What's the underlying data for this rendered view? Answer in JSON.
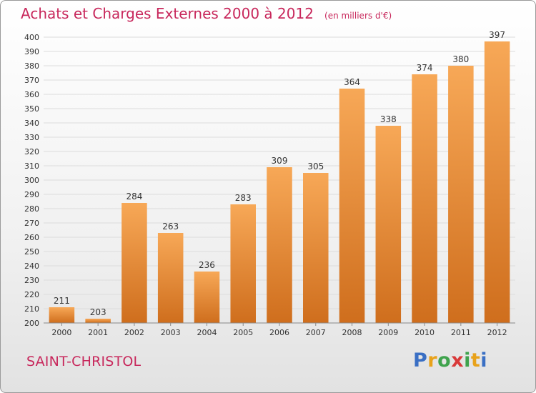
{
  "title": "Achats et Charges Externes 2000 à 2012",
  "subtitle": "(en milliers d'€)",
  "commune": "SAINT-CHRISTOL",
  "logo": {
    "letters": [
      "P",
      "r",
      "o",
      "x",
      "i",
      "t",
      "i"
    ],
    "colors": [
      "#3a6fc4",
      "#e8a21b",
      "#3fa34d",
      "#d93a3a",
      "#3fa34d",
      "#e8a21b",
      "#3a6fc4"
    ]
  },
  "colors": {
    "accent": "#c8285c",
    "bar_top": "#f7a857",
    "bar_bottom": "#cf6e1d",
    "grid": "#dcdcdc"
  },
  "chart_data": {
    "type": "bar",
    "title": "Achats et Charges Externes 2000 à 2012",
    "subtitle": "(en milliers d'€)",
    "categories": [
      "2000",
      "2001",
      "2002",
      "2003",
      "2004",
      "2005",
      "2006",
      "2007",
      "2008",
      "2009",
      "2010",
      "2011",
      "2012"
    ],
    "values": [
      211,
      203,
      284,
      263,
      236,
      283,
      309,
      305,
      364,
      338,
      374,
      380,
      397
    ],
    "ylim": [
      200,
      400
    ],
    "ytick_step": 10,
    "grid": true,
    "legend": "none"
  }
}
